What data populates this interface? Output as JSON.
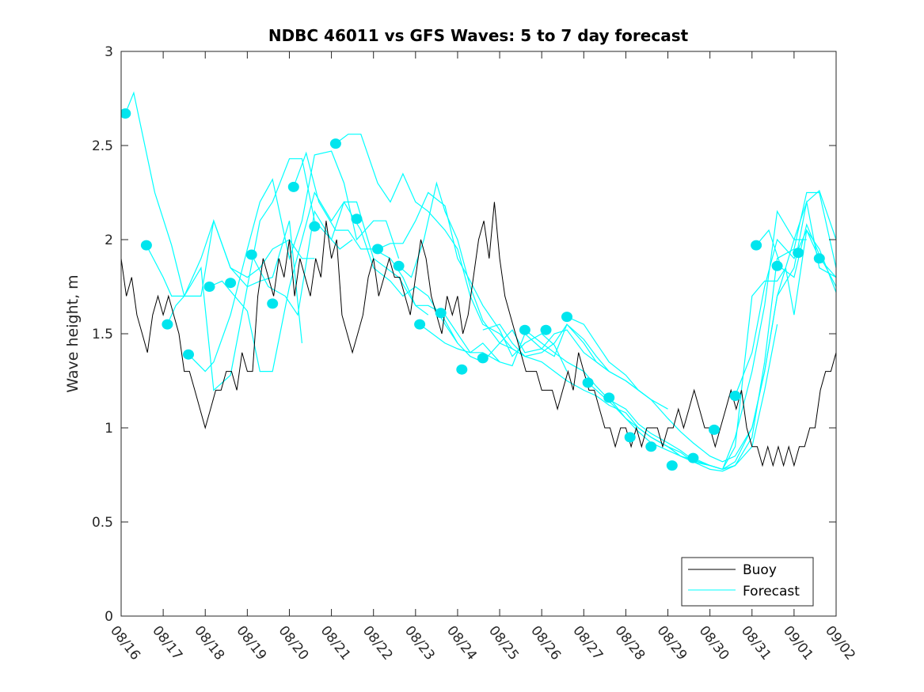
{
  "chart_data": {
    "type": "line",
    "title": "NDBC 46011 vs GFS Waves: 5 to 7 day forecast",
    "xlabel": "",
    "ylabel": "Wave height, m",
    "ylim": [
      0,
      3
    ],
    "xlim_days": [
      0,
      17
    ],
    "x_unit": "days since 08/16",
    "yticks": [
      "0",
      "0.5",
      "1",
      "1.5",
      "2",
      "2.5",
      "3"
    ],
    "xticks": [
      "08/16",
      "08/17",
      "08/18",
      "08/19",
      "08/20",
      "08/21",
      "08/22",
      "08/23",
      "08/24",
      "08/25",
      "08/26",
      "08/27",
      "08/28",
      "08/29",
      "08/30",
      "08/31",
      "09/01",
      "09/02"
    ],
    "grid": false,
    "legend": {
      "position": "bottom-right",
      "entries": [
        "Buoy",
        "Forecast"
      ]
    },
    "colors": {
      "buoy": "#000000",
      "forecast": "#00ffff",
      "marker": "#00e5ee",
      "axis": "#262626"
    },
    "series": [
      {
        "name": "Buoy",
        "x_start": 0,
        "x_step": 0.125,
        "values": [
          1.9,
          1.7,
          1.8,
          1.6,
          1.5,
          1.4,
          1.6,
          1.7,
          1.6,
          1.7,
          1.6,
          1.5,
          1.3,
          1.3,
          1.2,
          1.1,
          1.0,
          1.1,
          1.2,
          1.2,
          1.3,
          1.3,
          1.2,
          1.4,
          1.3,
          1.3,
          1.7,
          1.9,
          1.8,
          1.7,
          1.9,
          1.8,
          2.0,
          1.7,
          1.9,
          1.8,
          1.7,
          1.9,
          1.8,
          2.1,
          1.9,
          2.0,
          1.6,
          1.5,
          1.4,
          1.5,
          1.6,
          1.8,
          1.9,
          1.7,
          1.8,
          1.9,
          1.8,
          1.8,
          1.7,
          1.6,
          1.8,
          2.0,
          1.9,
          1.7,
          1.6,
          1.5,
          1.7,
          1.6,
          1.7,
          1.5,
          1.6,
          1.8,
          2.0,
          2.1,
          1.9,
          2.2,
          1.9,
          1.7,
          1.6,
          1.5,
          1.4,
          1.3,
          1.3,
          1.3,
          1.2,
          1.2,
          1.2,
          1.1,
          1.2,
          1.3,
          1.2,
          1.4,
          1.3,
          1.2,
          1.2,
          1.1,
          1.0,
          1.0,
          0.9,
          1.0,
          1.0,
          0.9,
          1.0,
          0.9,
          1.0,
          1.0,
          1.0,
          0.9,
          1.0,
          1.0,
          1.1,
          1.0,
          1.1,
          1.2,
          1.1,
          1.0,
          1.0,
          0.9,
          1.0,
          1.1,
          1.2,
          1.1,
          1.2,
          1.0,
          0.9,
          0.9,
          0.8,
          0.9,
          0.8,
          0.9,
          0.8,
          0.9,
          0.8,
          0.9,
          0.9,
          1.0,
          1.0,
          1.2,
          1.3,
          1.3,
          1.4,
          1.3,
          1.2,
          1.4,
          1.3,
          1.5,
          1.2,
          1.1,
          1.2,
          1.4,
          1.3,
          1.6,
          1.3,
          1.4,
          1.2,
          1.3,
          1.1,
          1.3,
          1.2,
          1.4,
          1.3,
          1.4,
          1.2,
          1.2,
          1.3
        ]
      },
      {
        "name": "Forecast",
        "runs": [
          {
            "x": [
              0.1,
              0.3,
              0.8,
              1.2,
              1.5,
              1.9,
              2.2,
              2.6,
              3.0,
              3.3,
              3.6,
              4.0,
              4.3,
              4.6
            ],
            "y": [
              2.67,
              2.78,
              2.25,
              1.97,
              1.7,
              1.7,
              2.1,
              1.85,
              1.8,
              1.85,
              1.95,
              2.0,
              1.9,
              1.9
            ]
          },
          {
            "x": [
              0.6,
              1.0,
              1.2,
              1.5,
              1.9,
              2.2,
              2.6,
              3.0,
              3.3,
              3.6,
              4.0,
              4.3
            ],
            "y": [
              1.97,
              1.8,
              1.7,
              1.7,
              1.9,
              2.1,
              1.85,
              1.75,
              1.78,
              1.8,
              2.1,
              1.45
            ]
          },
          {
            "x": [
              1.1,
              1.3,
              1.5,
              1.9,
              2.2,
              2.6,
              3.0,
              3.3,
              3.6,
              4.0,
              4.3,
              4.6,
              5.0,
              5.2,
              5.5
            ],
            "y": [
              1.55,
              1.65,
              1.7,
              1.85,
              1.2,
              1.28,
              1.75,
              2.1,
              2.2,
              2.43,
              2.43,
              2.1,
              2.0,
              1.95,
              2.0
            ]
          },
          {
            "x": [
              1.6,
              2.0,
              2.2,
              2.6,
              3.0,
              3.3,
              3.6,
              4.0,
              4.3,
              4.6,
              5.0,
              5.3,
              5.6,
              6.0,
              6.3,
              6.6
            ],
            "y": [
              1.39,
              1.3,
              1.35,
              1.6,
              1.95,
              2.2,
              2.32,
              1.9,
              2.1,
              2.45,
              2.47,
              2.3,
              2.0,
              2.1,
              2.1,
              1.9
            ]
          },
          {
            "x": [
              2.1,
              2.4,
              2.7,
              3.0,
              3.3,
              3.6,
              4.0,
              4.3,
              4.6,
              5.0,
              5.3,
              5.6,
              6.0,
              6.3,
              6.6,
              7.0,
              7.3
            ],
            "y": [
              1.75,
              1.78,
              1.7,
              1.62,
              1.3,
              1.3,
              1.75,
              2.0,
              2.25,
              2.1,
              2.2,
              2.2,
              1.9,
              1.85,
              1.8,
              1.65,
              1.6
            ]
          },
          {
            "x": [
              3.1,
              3.5,
              3.9,
              4.2,
              4.6,
              5.0,
              5.3,
              5.7,
              6.0,
              6.4,
              6.7,
              7.0,
              7.3,
              7.7,
              8.0
            ],
            "y": [
              1.92,
              1.75,
              1.7,
              1.6,
              2.15,
              2.0,
              2.2,
              2.05,
              1.85,
              1.78,
              1.7,
              1.75,
              1.7,
              1.55,
              1.45
            ]
          },
          {
            "x": [
              4.1,
              4.4,
              4.7,
              5.1,
              5.4,
              5.7,
              6.0,
              6.4,
              6.7,
              7.0,
              7.3,
              7.7,
              8.0,
              8.3,
              8.6,
              9.0
            ],
            "y": [
              2.28,
              2.46,
              2.2,
              2.05,
              2.05,
              1.95,
              1.95,
              1.9,
              1.8,
              1.65,
              1.65,
              1.6,
              1.5,
              1.4,
              1.4,
              1.35
            ]
          },
          {
            "x": [
              5.1,
              5.4,
              5.7,
              6.1,
              6.4,
              6.7,
              7.0,
              7.3,
              7.7,
              8.0,
              8.3,
              8.6,
              9.0,
              9.3,
              9.6
            ],
            "y": [
              2.51,
              2.56,
              2.56,
              2.3,
              2.2,
              2.35,
              2.2,
              2.15,
              2.05,
              1.95,
              1.7,
              1.55,
              1.5,
              1.42,
              1.38
            ]
          },
          {
            "x": [
              6.1,
              6.4,
              6.7,
              7.0,
              7.3,
              7.7,
              8.0,
              8.3,
              8.6,
              9.0,
              9.3,
              9.6,
              10.0,
              10.3,
              10.6
            ],
            "y": [
              1.95,
              1.98,
              1.98,
              2.1,
              2.25,
              2.18,
              1.9,
              1.78,
              1.65,
              1.52,
              1.38,
              1.45,
              1.5,
              1.44,
              1.3
            ]
          },
          {
            "x": [
              6.6,
              6.9,
              7.2,
              7.5,
              7.7,
              8.0,
              8.3,
              8.6,
              9.0,
              9.3,
              9.6,
              10.0,
              10.3,
              10.6,
              11.0,
              11.3,
              11.6
            ],
            "y": [
              1.86,
              1.8,
              2.0,
              2.3,
              2.15,
              2.0,
              1.75,
              1.57,
              1.45,
              1.42,
              1.38,
              1.4,
              1.45,
              1.55,
              1.47,
              1.38,
              1.3
            ]
          },
          {
            "x": [
              7.1,
              7.4,
              7.7,
              8.0,
              8.3,
              8.6,
              9.0,
              9.3,
              9.6,
              10.0,
              10.3,
              10.6,
              11.0,
              11.3,
              11.6,
              12.0,
              12.3,
              12.6
            ],
            "y": [
              1.55,
              1.5,
              1.45,
              1.42,
              1.4,
              1.45,
              1.35,
              1.33,
              1.5,
              1.42,
              1.5,
              1.52,
              1.4,
              1.35,
              1.3,
              1.25,
              1.2,
              1.15
            ]
          },
          {
            "x": [
              7.6,
              8.0,
              8.3,
              8.6,
              9.0,
              9.3,
              9.6,
              10.0,
              10.3,
              10.6,
              11.0,
              11.3,
              11.6,
              12.0,
              12.3,
              12.6,
              13.0
            ],
            "y": [
              1.61,
              1.45,
              1.38,
              1.35,
              1.45,
              1.52,
              1.4,
              1.42,
              1.38,
              1.55,
              1.45,
              1.35,
              1.3,
              1.25,
              1.2,
              1.15,
              1.1
            ]
          },
          {
            "x": [
              8.6,
              9.0,
              9.3,
              9.6,
              10.0,
              10.3,
              10.6,
              11.0,
              11.3,
              11.6,
              12.0,
              12.3,
              12.6,
              13.0,
              13.3,
              13.6,
              14.0,
              14.3
            ],
            "y": [
              1.52,
              1.55,
              1.45,
              1.38,
              1.35,
              1.3,
              1.25,
              1.2,
              1.17,
              1.12,
              1.08,
              1.0,
              0.95,
              0.9,
              0.87,
              0.82,
              0.8,
              0.78
            ]
          },
          {
            "x": [
              9.6,
              10.0,
              10.3,
              10.6,
              11.0,
              11.3,
              11.6,
              12.0,
              12.3,
              12.6,
              13.0,
              13.3,
              13.6,
              14.0,
              14.3,
              14.6,
              15.0,
              15.3,
              15.6
            ],
            "y": [
              1.52,
              1.45,
              1.4,
              1.35,
              1.3,
              1.22,
              1.15,
              1.1,
              1.02,
              0.97,
              0.92,
              0.88,
              0.83,
              0.8,
              0.78,
              0.8,
              0.9,
              1.2,
              1.55
            ]
          },
          {
            "x": [
              10.6,
              11.0,
              11.3,
              11.6,
              12.0,
              12.3,
              12.6,
              13.0,
              13.3,
              13.6,
              14.0,
              14.3,
              14.6,
              15.0,
              15.3,
              15.6,
              16.0,
              16.3
            ],
            "y": [
              1.59,
              1.55,
              1.45,
              1.35,
              1.28,
              1.2,
              1.15,
              1.05,
              0.98,
              0.92,
              0.85,
              0.82,
              0.85,
              1.0,
              1.3,
              1.7,
              2.0,
              2.0
            ]
          },
          {
            "x": [
              11.1,
              11.4,
              11.7,
              12.0,
              12.3,
              12.6,
              13.0,
              13.3,
              13.6,
              14.0,
              14.3,
              14.6,
              15.0,
              15.3,
              15.6,
              16.0,
              16.3,
              16.6,
              17.0
            ],
            "y": [
              1.24,
              1.18,
              1.12,
              1.05,
              1.0,
              0.95,
              0.9,
              0.85,
              0.82,
              0.8,
              0.78,
              0.82,
              1.0,
              1.3,
              1.7,
              1.85,
              2.2,
              2.26,
              2.0
            ]
          },
          {
            "x": [
              11.6,
              12.0,
              12.3,
              12.6,
              13.0,
              13.3,
              13.6,
              14.0,
              14.3,
              14.6,
              15.0,
              15.3,
              15.6,
              16.0,
              16.3,
              16.6,
              17.0
            ],
            "y": [
              1.16,
              1.05,
              0.98,
              0.92,
              0.88,
              0.85,
              0.82,
              0.78,
              0.77,
              0.8,
              0.95,
              1.35,
              1.9,
              1.95,
              2.25,
              2.25,
              1.85
            ]
          },
          {
            "x": [
              12.6,
              13.0,
              13.3,
              13.6,
              14.0,
              14.3,
              14.6,
              15.0,
              15.3,
              15.6,
              15.8,
              16.0,
              16.3,
              16.6,
              17.0
            ],
            "y": [
              0.95,
              0.9,
              0.85,
              0.83,
              0.8,
              0.78,
              0.9,
              1.7,
              1.78,
              1.78,
              1.85,
              1.6,
              2.05,
              1.95,
              1.72
            ]
          },
          {
            "x": [
              13.6,
              14.0,
              14.3,
              14.6,
              15.0,
              15.3,
              15.6,
              16.0,
              16.3,
              16.6,
              17.0
            ],
            "y": [
              0.84,
              0.8,
              0.78,
              0.95,
              1.3,
              1.65,
              2.15,
              2.0,
              2.2,
              1.85,
              1.8
            ]
          },
          {
            "x": [
              14.6,
              15.0,
              15.3,
              15.6,
              16.0,
              16.3,
              16.6,
              17.0
            ],
            "y": [
              1.17,
              1.4,
              1.75,
              2.0,
              1.9,
              2.05,
              1.9,
              1.8
            ]
          },
          {
            "x": [
              15.1,
              15.4,
              15.7,
              16.0,
              16.3,
              16.6,
              17.0
            ],
            "y": [
              1.97,
              2.05,
              1.85,
              1.8,
              2.08,
              1.92,
              1.75
            ]
          }
        ],
        "markers": {
          "x": [
            0.1,
            0.6,
            1.1,
            1.6,
            2.1,
            2.6,
            3.1,
            3.6,
            4.1,
            4.6,
            5.1,
            5.6,
            6.1,
            6.6,
            7.1,
            7.6,
            8.1,
            8.6,
            9.6,
            10.1,
            10.6,
            11.1,
            11.6,
            12.1,
            12.6,
            13.1,
            13.6,
            14.1,
            14.6,
            15.1,
            15.6,
            16.1,
            16.6
          ],
          "y": [
            2.67,
            1.97,
            1.55,
            1.39,
            1.75,
            1.77,
            1.92,
            1.66,
            2.28,
            2.07,
            2.51,
            2.11,
            1.95,
            1.86,
            1.55,
            1.61,
            1.31,
            1.37,
            1.52,
            1.52,
            1.59,
            1.24,
            1.16,
            0.95,
            0.9,
            0.8,
            0.84,
            0.99,
            1.17,
            1.97,
            1.86,
            1.93,
            1.9
          ]
        }
      }
    ]
  }
}
